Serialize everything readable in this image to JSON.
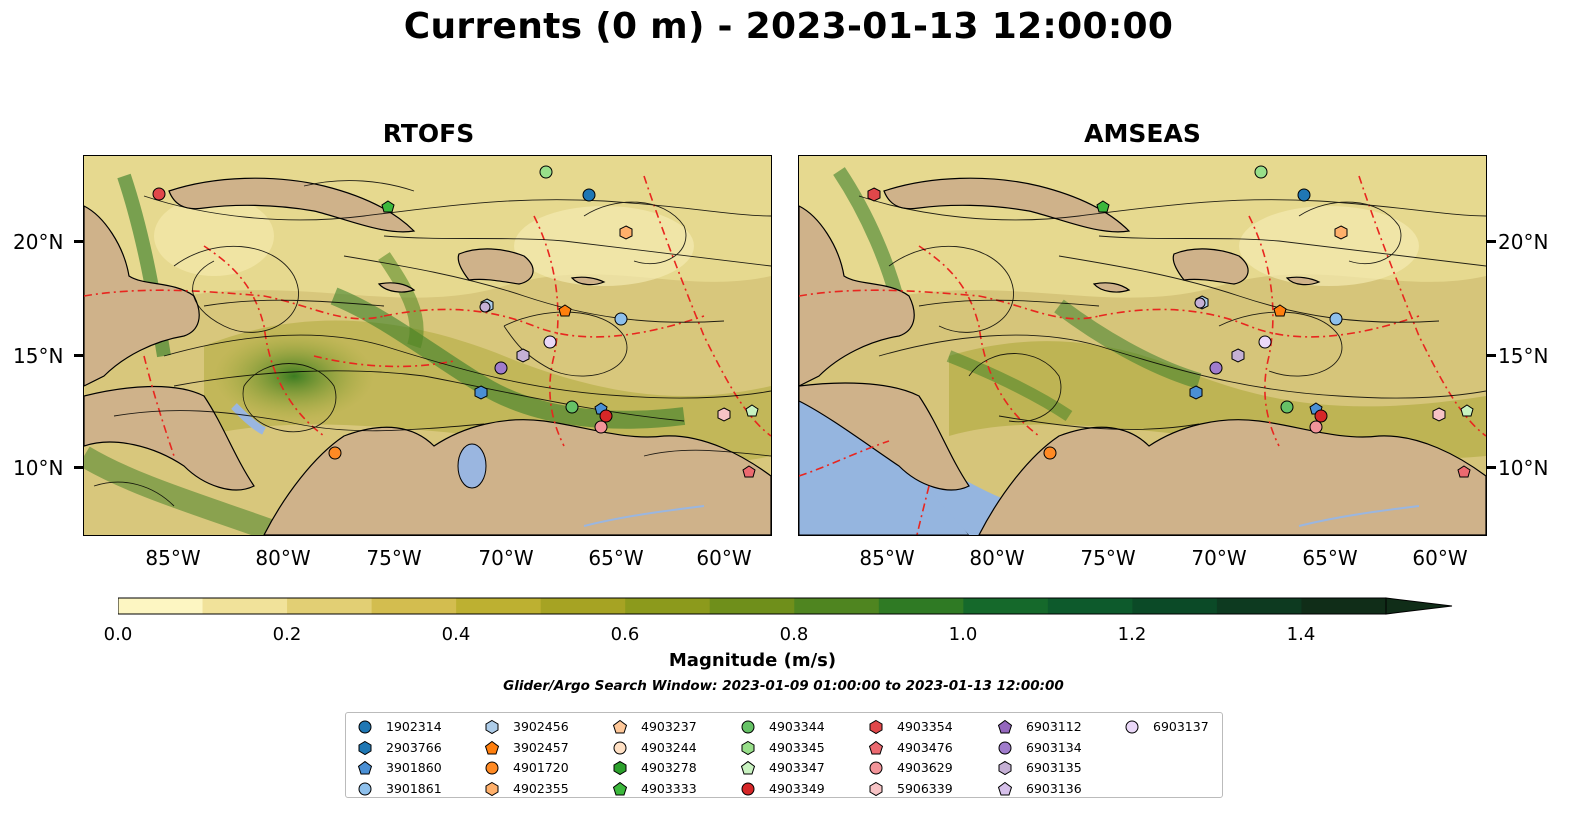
{
  "figure": {
    "title": "Currents (0 m) - 2023-01-13 12:00:00",
    "panels": [
      {
        "title": "RTOFS"
      },
      {
        "title": "AMSEAS"
      }
    ],
    "lat_labels": [
      "20°N",
      "15°N",
      "10°N"
    ],
    "lon_labels": [
      "85°W",
      "80°W",
      "75°W",
      "70°W",
      "65°W",
      "60°W"
    ],
    "colorbar": {
      "title": "Magnitude (m/s)",
      "tick_labels": [
        "0.0",
        "0.2",
        "0.4",
        "0.6",
        "0.8",
        "1.0",
        "1.2",
        "1.4"
      ],
      "colors": [
        "#fdf6c2",
        "#f1e29a",
        "#e2cf74",
        "#d3bd4f",
        "#bdb031",
        "#a6a323",
        "#8c9a1c",
        "#6f8f1b",
        "#4f8520",
        "#2f7a24",
        "#15692b",
        "#0d5a2c",
        "#0b4a27",
        "#0d3a20",
        "#102d18"
      ]
    },
    "subtitle": "Glider/Argo Search Window: 2023-01-09 01:00:00 to 2023-01-13 12:00:00",
    "colors": {
      "land": "#cfb28a",
      "lake": "#9ab6e0",
      "eez": "#e8261f",
      "contour": "#000000"
    }
  },
  "legend": {
    "items": [
      {
        "label": "1902314",
        "marker": "circle",
        "color": "#1f77b4"
      },
      {
        "label": "2903766",
        "marker": "hexagon",
        "color": "#1f77b4"
      },
      {
        "label": "3901860",
        "marker": "pentagon",
        "color": "#4a8fd4"
      },
      {
        "label": "3901861",
        "marker": "circle",
        "color": "#8ec0ec"
      },
      {
        "label": "3902456",
        "marker": "hexagon",
        "color": "#aecde9"
      },
      {
        "label": "3902457",
        "marker": "pentagon",
        "color": "#ff7f0e"
      },
      {
        "label": "4901720",
        "marker": "circle",
        "color": "#ff8a24"
      },
      {
        "label": "4902355",
        "marker": "hexagon",
        "color": "#ffb06b"
      },
      {
        "label": "4903237",
        "marker": "pentagon",
        "color": "#ffc899"
      },
      {
        "label": "4903244",
        "marker": "circle",
        "color": "#ffe0c4"
      },
      {
        "label": "4903278",
        "marker": "hexagon",
        "color": "#2ca02c"
      },
      {
        "label": "4903333",
        "marker": "pentagon",
        "color": "#3cb83c"
      },
      {
        "label": "4903344",
        "marker": "circle",
        "color": "#66c266"
      },
      {
        "label": "4903345",
        "marker": "hexagon",
        "color": "#98df8a"
      },
      {
        "label": "4903347",
        "marker": "pentagon",
        "color": "#c8f2c0"
      },
      {
        "label": "4903349",
        "marker": "circle",
        "color": "#d62728"
      },
      {
        "label": "4903354",
        "marker": "hexagon",
        "color": "#e0474a"
      },
      {
        "label": "4903476",
        "marker": "pentagon",
        "color": "#ec6a70"
      },
      {
        "label": "4903629",
        "marker": "circle",
        "color": "#f29499"
      },
      {
        "label": "5906339",
        "marker": "hexagon",
        "color": "#f7c3c5"
      },
      {
        "label": "6903112",
        "marker": "pentagon",
        "color": "#9467bd"
      },
      {
        "label": "6903134",
        "marker": "circle",
        "color": "#a07ccc"
      },
      {
        "label": "6903135",
        "marker": "hexagon",
        "color": "#c5b0d5"
      },
      {
        "label": "6903136",
        "marker": "pentagon",
        "color": "#d6c0ea"
      },
      {
        "label": "6903137",
        "marker": "circle",
        "color": "#ead8f8"
      }
    ]
  }
}
